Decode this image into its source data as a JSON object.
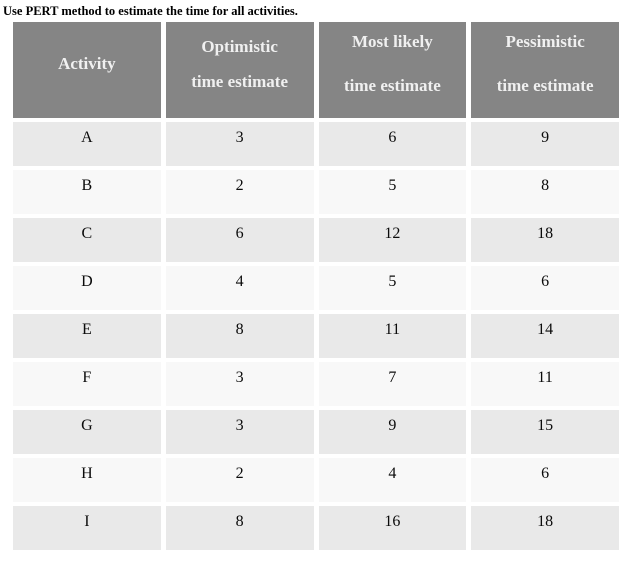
{
  "page": {
    "instruction": "Use PERT method to estimate the time for all activities."
  },
  "table": {
    "columns": [
      {
        "lines": [
          "Activity"
        ]
      },
      {
        "lines": [
          "Optimistic",
          "time estimate"
        ]
      },
      {
        "lines": [
          "Most likely",
          "time estimate"
        ]
      },
      {
        "lines": [
          "Pessimistic",
          "time estimate"
        ]
      }
    ],
    "rows": [
      {
        "cells": [
          "A",
          "3",
          "6",
          "9"
        ]
      },
      {
        "cells": [
          "B",
          "2",
          "5",
          "8"
        ]
      },
      {
        "cells": [
          "C",
          "6",
          "12",
          "18"
        ]
      },
      {
        "cells": [
          "D",
          "4",
          "5",
          "6"
        ]
      },
      {
        "cells": [
          "E",
          "8",
          "11",
          "14"
        ]
      },
      {
        "cells": [
          "F",
          "3",
          "7",
          "11"
        ]
      },
      {
        "cells": [
          "G",
          "3",
          "9",
          "15"
        ]
      },
      {
        "cells": [
          "H",
          "2",
          "4",
          "6"
        ]
      },
      {
        "cells": [
          "I",
          "8",
          "16",
          "18"
        ]
      }
    ]
  },
  "colors": {
    "header_background": "#858585",
    "header_text": "#f0f0f0",
    "row_odd_background": "#e9e9e9",
    "row_even_background": "#f8f8f8",
    "body_text": "#0b0b0b",
    "page_background": "#ffffff"
  }
}
